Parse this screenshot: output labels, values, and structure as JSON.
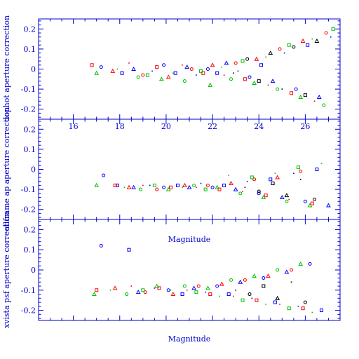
{
  "chart_data": [
    {
      "type": "scatter",
      "ylabel": "dophot aperture correction",
      "xlabel": "",
      "xlim": [
        14.5,
        27.5
      ],
      "ylim": [
        -0.25,
        0.25
      ],
      "xtick_labels": [
        "16",
        "18",
        "20",
        "22",
        "24",
        "26"
      ],
      "ytick_labels": [
        "0.2",
        "0.1",
        "0",
        "-0.1",
        "-0.2"
      ],
      "series": [
        {
          "color": "#0000ff",
          "points": [
            [
              17.2,
              0.01
            ],
            [
              18.1,
              -0.02
            ],
            [
              18.6,
              0.0
            ],
            [
              19.4,
              -0.01
            ],
            [
              19.9,
              0.02
            ],
            [
              20.4,
              -0.02
            ],
            [
              20.9,
              0.01
            ],
            [
              21.3,
              -0.03
            ],
            [
              21.8,
              0.0
            ],
            [
              22.2,
              -0.02
            ],
            [
              22.6,
              0.03
            ],
            [
              23.1,
              -0.01
            ],
            [
              23.6,
              -0.04
            ],
            [
              24.1,
              0.02
            ],
            [
              24.6,
              -0.06
            ],
            [
              25.1,
              0.08
            ],
            [
              25.6,
              -0.1
            ],
            [
              26.1,
              0.12
            ],
            [
              26.6,
              -0.14
            ],
            [
              27.1,
              0.16
            ]
          ]
        },
        {
          "color": "#ff0000",
          "points": [
            [
              16.8,
              0.02
            ],
            [
              17.7,
              -0.01
            ],
            [
              18.4,
              0.03
            ],
            [
              19.0,
              -0.03
            ],
            [
              19.6,
              0.01
            ],
            [
              20.1,
              -0.04
            ],
            [
              20.7,
              0.02
            ],
            [
              21.1,
              0.0
            ],
            [
              21.6,
              -0.02
            ],
            [
              22.0,
              0.02
            ],
            [
              22.5,
              -0.03
            ],
            [
              23.0,
              0.03
            ],
            [
              23.4,
              -0.05
            ],
            [
              23.9,
              0.05
            ],
            [
              24.4,
              -0.08
            ],
            [
              24.9,
              0.1
            ],
            [
              25.4,
              -0.12
            ],
            [
              25.9,
              0.14
            ],
            [
              26.4,
              -0.16
            ],
            [
              26.9,
              0.18
            ]
          ]
        },
        {
          "color": "#00c000",
          "points": [
            [
              17.0,
              -0.02
            ],
            [
              17.9,
              0.0
            ],
            [
              18.8,
              -0.04
            ],
            [
              19.2,
              -0.03
            ],
            [
              19.8,
              -0.05
            ],
            [
              20.3,
              -0.02
            ],
            [
              20.8,
              -0.06
            ],
            [
              21.5,
              -0.01
            ],
            [
              21.9,
              -0.08
            ],
            [
              22.4,
              0.01
            ],
            [
              22.8,
              -0.05
            ],
            [
              23.3,
              0.04
            ],
            [
              23.8,
              -0.07
            ],
            [
              24.3,
              0.06
            ],
            [
              24.8,
              -0.1
            ],
            [
              25.3,
              0.12
            ],
            [
              25.8,
              -0.14
            ],
            [
              26.3,
              0.15
            ],
            [
              26.8,
              -0.18
            ],
            [
              27.2,
              0.2
            ]
          ]
        },
        {
          "color": "#000000",
          "points": [
            [
              22.9,
              -0.02
            ],
            [
              23.5,
              0.05
            ],
            [
              24.0,
              -0.06
            ],
            [
              24.5,
              0.08
            ],
            [
              25.0,
              -0.1
            ],
            [
              25.5,
              0.11
            ],
            [
              26.0,
              -0.13
            ],
            [
              26.5,
              0.14
            ]
          ]
        }
      ]
    },
    {
      "type": "scatter",
      "ylabel": "allframe ap aperture correction",
      "xlabel": "Magnitude",
      "xlim": [
        14.5,
        27.5
      ],
      "ylim": [
        -0.25,
        0.25
      ],
      "xtick_labels": [],
      "ytick_labels": [
        "0.2",
        "0.1",
        "0",
        "-0.1",
        "-0.2"
      ],
      "series": [
        {
          "color": "#0000ff",
          "points": [
            [
              17.3,
              -0.03
            ],
            [
              17.9,
              -0.08
            ],
            [
              18.6,
              -0.09
            ],
            [
              19.3,
              -0.08
            ],
            [
              19.9,
              -0.09
            ],
            [
              20.5,
              -0.08
            ],
            [
              21.0,
              -0.09
            ],
            [
              21.5,
              -0.07
            ],
            [
              22.0,
              -0.09
            ],
            [
              22.5,
              -0.08
            ],
            [
              23.0,
              -0.1
            ],
            [
              23.5,
              -0.06
            ],
            [
              24.0,
              -0.12
            ],
            [
              24.5,
              -0.05
            ],
            [
              25.0,
              -0.14
            ],
            [
              25.5,
              -0.02
            ],
            [
              26.0,
              -0.16
            ],
            [
              26.5,
              0.0
            ],
            [
              27.0,
              -0.18
            ]
          ]
        },
        {
          "color": "#ff0000",
          "points": [
            [
              17.8,
              -0.08
            ],
            [
              18.4,
              -0.09
            ],
            [
              19.0,
              -0.08
            ],
            [
              19.6,
              -0.1
            ],
            [
              20.2,
              -0.09
            ],
            [
              20.8,
              -0.08
            ],
            [
              21.3,
              -0.09
            ],
            [
              21.8,
              -0.08
            ],
            [
              22.3,
              -0.1
            ],
            [
              22.8,
              -0.07
            ],
            [
              23.3,
              -0.11
            ],
            [
              23.8,
              -0.05
            ],
            [
              24.3,
              -0.13
            ],
            [
              24.8,
              -0.04
            ],
            [
              25.3,
              -0.15
            ],
            [
              25.8,
              -0.01
            ],
            [
              26.3,
              -0.17
            ]
          ]
        },
        {
          "color": "#00c000",
          "points": [
            [
              17.0,
              -0.08
            ],
            [
              18.2,
              -0.09
            ],
            [
              18.9,
              -0.1
            ],
            [
              19.5,
              -0.08
            ],
            [
              20.1,
              -0.1
            ],
            [
              20.7,
              -0.09
            ],
            [
              21.2,
              -0.08
            ],
            [
              21.7,
              -0.1
            ],
            [
              22.2,
              -0.09
            ],
            [
              22.7,
              -0.03
            ],
            [
              23.2,
              -0.12
            ],
            [
              23.7,
              -0.04
            ],
            [
              24.2,
              -0.14
            ],
            [
              24.7,
              -0.02
            ],
            [
              25.2,
              -0.16
            ],
            [
              25.7,
              0.01
            ],
            [
              26.2,
              -0.18
            ],
            [
              26.7,
              0.03
            ]
          ]
        },
        {
          "color": "#000000",
          "points": [
            [
              23.4,
              -0.09
            ],
            [
              24.0,
              -0.11
            ],
            [
              24.6,
              -0.07
            ],
            [
              25.2,
              -0.13
            ],
            [
              25.8,
              -0.05
            ],
            [
              26.4,
              -0.15
            ]
          ]
        }
      ]
    },
    {
      "type": "scatter",
      "ylabel": "xvista psf aperture correction",
      "xlabel": "Magnitude",
      "xlim": [
        14.5,
        27.5
      ],
      "ylim": [
        -0.25,
        0.25
      ],
      "xtick_labels": [],
      "ytick_labels": [
        "0.2",
        "0.1",
        "0",
        "-0.1",
        "-0.2"
      ],
      "series": [
        {
          "color": "#0000ff",
          "points": [
            [
              17.2,
              0.12
            ],
            [
              18.4,
              0.1
            ],
            [
              18.8,
              -0.11
            ],
            [
              19.5,
              -0.09
            ],
            [
              20.1,
              -0.1
            ],
            [
              20.7,
              -0.12
            ],
            [
              21.2,
              -0.09
            ],
            [
              21.7,
              -0.11
            ],
            [
              22.2,
              -0.08
            ],
            [
              22.7,
              -0.12
            ],
            [
              23.2,
              -0.06
            ],
            [
              23.7,
              -0.14
            ],
            [
              24.2,
              -0.04
            ],
            [
              24.7,
              -0.16
            ],
            [
              25.2,
              -0.01
            ],
            [
              25.7,
              -0.18
            ],
            [
              26.2,
              0.03
            ],
            [
              26.7,
              -0.2
            ]
          ]
        },
        {
          "color": "#ff0000",
          "points": [
            [
              17.0,
              -0.1
            ],
            [
              17.8,
              -0.09
            ],
            [
              18.5,
              -0.08
            ],
            [
              19.1,
              -0.11
            ],
            [
              19.7,
              -0.09
            ],
            [
              20.3,
              -0.12
            ],
            [
              20.9,
              -0.1
            ],
            [
              21.4,
              -0.08
            ],
            [
              21.9,
              -0.12
            ],
            [
              22.4,
              -0.07
            ],
            [
              22.9,
              -0.13
            ],
            [
              23.4,
              -0.05
            ],
            [
              23.9,
              -0.15
            ],
            [
              24.4,
              -0.03
            ],
            [
              24.9,
              -0.17
            ],
            [
              25.4,
              0.0
            ],
            [
              25.9,
              -0.19
            ]
          ]
        },
        {
          "color": "#00c000",
          "points": [
            [
              16.9,
              -0.12
            ],
            [
              17.6,
              -0.1
            ],
            [
              18.3,
              -0.12
            ],
            [
              19.0,
              -0.1
            ],
            [
              19.6,
              -0.08
            ],
            [
              20.2,
              -0.1
            ],
            [
              20.8,
              -0.08
            ],
            [
              21.3,
              -0.11
            ],
            [
              21.8,
              -0.09
            ],
            [
              22.3,
              -0.13
            ],
            [
              22.8,
              -0.05
            ],
            [
              23.3,
              -0.15
            ],
            [
              23.8,
              -0.03
            ],
            [
              24.3,
              -0.17
            ],
            [
              24.8,
              0.0
            ],
            [
              25.3,
              -0.19
            ],
            [
              25.8,
              0.03
            ],
            [
              26.3,
              -0.21
            ]
          ]
        },
        {
          "color": "#000000",
          "points": [
            [
              23.0,
              -0.1
            ],
            [
              23.6,
              -0.12
            ],
            [
              24.2,
              -0.08
            ],
            [
              24.8,
              -0.14
            ],
            [
              25.4,
              -0.06
            ],
            [
              26.0,
              -0.16
            ]
          ]
        }
      ]
    }
  ]
}
